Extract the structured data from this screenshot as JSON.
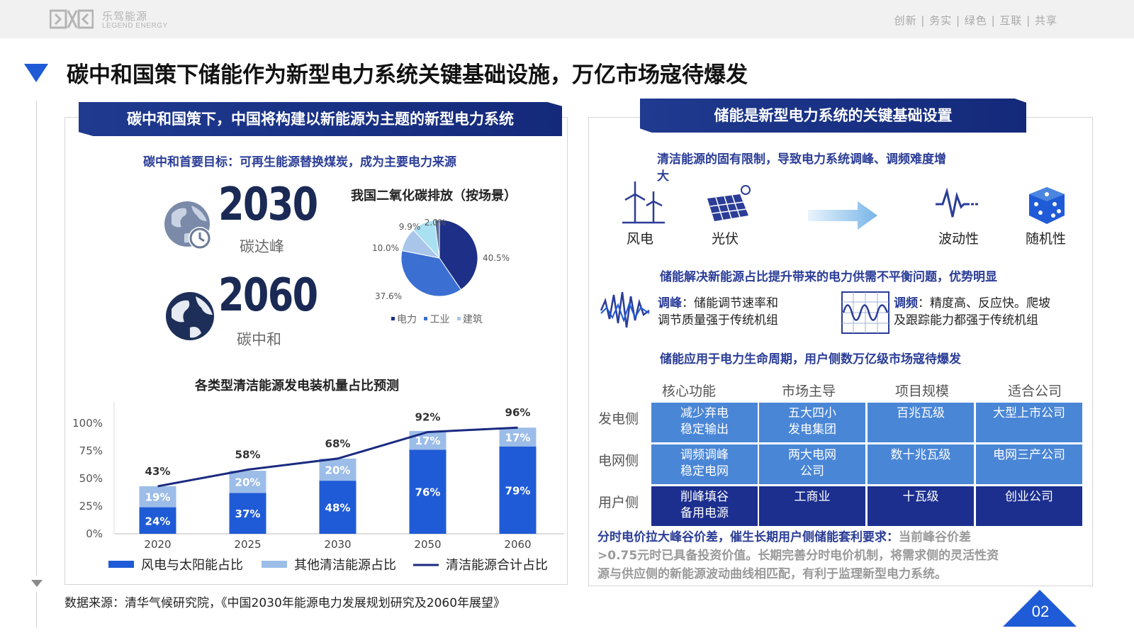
{
  "header": {
    "logo_cn": "乐驾能源",
    "logo_en": "LEGEND ENERGY",
    "motto": "创新 | 务实 | 绿色 | 互联 | 共享"
  },
  "page_title": "碳中和国策下储能作为新型电力系统关键基础设施，万亿市场寇待爆发",
  "left": {
    "banner": "碳中和国策下，中国将构建以新能源为主题的新型电力系统",
    "subhead": "碳中和首要目标：可再生能源替换煤炭，成为主要电力来源",
    "milestones": [
      {
        "year": "2030",
        "label": "碳达峰"
      },
      {
        "year": "2060",
        "label": "碳中和"
      }
    ],
    "source": "数据来源：清华气候研究院，《中国2030年能源电力发展规划研究及2060年展望》"
  },
  "right": {
    "banner": "储能是新型电力系统的关键基础设置",
    "limit_text_1": "清洁能源的固有限制，导致电力系统调峰、调频难度增",
    "limit_text_2": "大",
    "icons": [
      {
        "name": "wind-turbine-icon",
        "label": "风电"
      },
      {
        "name": "solar-panel-icon",
        "label": "光伏"
      },
      {
        "name": "fluctuation-icon",
        "label": "波动性"
      },
      {
        "name": "dice-icon",
        "label": "随机性"
      }
    ],
    "solution_head": "储能解决新能源占比提升带来的电力供需不平衡问题，优势明显",
    "peak_label": "调峰",
    "peak_text_1": "：储能调节速率和",
    "peak_text_2": "调节质量强于传统机组",
    "freq_label": "调频",
    "freq_text_1": "：精度高、反应快。爬坡",
    "freq_text_2": "及跟踪能力都强于传统机组",
    "lifecycle_head": "储能应用于电力生命周期，用户侧数万亿级市场寇待爆发",
    "table": {
      "columns": [
        "核心功能",
        "市场主导",
        "项目规模",
        "适合公司"
      ],
      "rows": [
        {
          "label": "发电侧",
          "cells": [
            [
              "减少弃电",
              "稳定输出"
            ],
            [
              "五大四小",
              "发电集团"
            ],
            [
              "百兆瓦级"
            ],
            [
              "大型上市公司"
            ]
          ]
        },
        {
          "label": "电网侧",
          "cells": [
            [
              "调频调峰",
              "稳定电网"
            ],
            [
              "两大电网",
              "公司"
            ],
            [
              "数十兆瓦级"
            ],
            [
              "电网三产公司"
            ]
          ]
        },
        {
          "label": "用户侧",
          "cells": [
            [
              "削峰填谷",
              "备用电源"
            ],
            [
              "工商业"
            ],
            [
              "十瓦级"
            ],
            [
              "创业公司"
            ]
          ]
        }
      ]
    },
    "note_bold": "分时电价拉大峰谷价差，催生长期用户侧储能套利要求：",
    "note_gray_1": "当前峰谷价差",
    "note_line_2": ">0.75元时已具备投资价值。长期完善分时电价机制，将需求侧的灵活性资",
    "note_line_3": "源与供应侧的新能源波动曲线相匹配，有利于监理新型电力系统。"
  },
  "page_number": "02",
  "colors": {
    "accent": "#1f5bd6",
    "navy": "#1c2f8f",
    "mid_blue": "#4a86d6",
    "light_blue": "#a9c4ea"
  },
  "chart_data": [
    {
      "type": "pie",
      "title": "我国二氧化碳排放（按场景）",
      "labels": [
        "电力",
        "工业",
        "建筑",
        "",
        ""
      ],
      "values": [
        40.5,
        37.6,
        10.0,
        9.9,
        2.0
      ],
      "value_labels": [
        "40.5%",
        "37.6%",
        "10.0%",
        "9.9%",
        "2.0%"
      ],
      "colors": [
        "#1d2f86",
        "#3b6fd1",
        "#a9c6ea",
        "#a9e0f2",
        "#5b6f9a"
      ],
      "legend": [
        "电力",
        "工业",
        "建筑"
      ],
      "legend_placement": "bottom"
    },
    {
      "type": "bar",
      "title": "各类型清洁能源发电装机量占比预测",
      "categories": [
        "2020",
        "2025",
        "2030",
        "2050",
        "2060"
      ],
      "series": [
        {
          "name": "风电与太阳能占比",
          "values": [
            24,
            37,
            48,
            76,
            79
          ],
          "color": "#1f5bd6"
        },
        {
          "name": "其他清洁能源占比",
          "values": [
            19,
            20,
            20,
            17,
            17
          ],
          "color": "#9cbde8"
        },
        {
          "name": "清洁能源合计占比",
          "values": [
            43,
            58,
            68,
            92,
            96
          ],
          "color": "#1a2a80",
          "kind": "line"
        }
      ],
      "yticks": [
        "0%",
        "25%",
        "50%",
        "75%",
        "100%"
      ],
      "ylim": [
        0,
        100
      ],
      "legend_placement": "bottom"
    }
  ]
}
